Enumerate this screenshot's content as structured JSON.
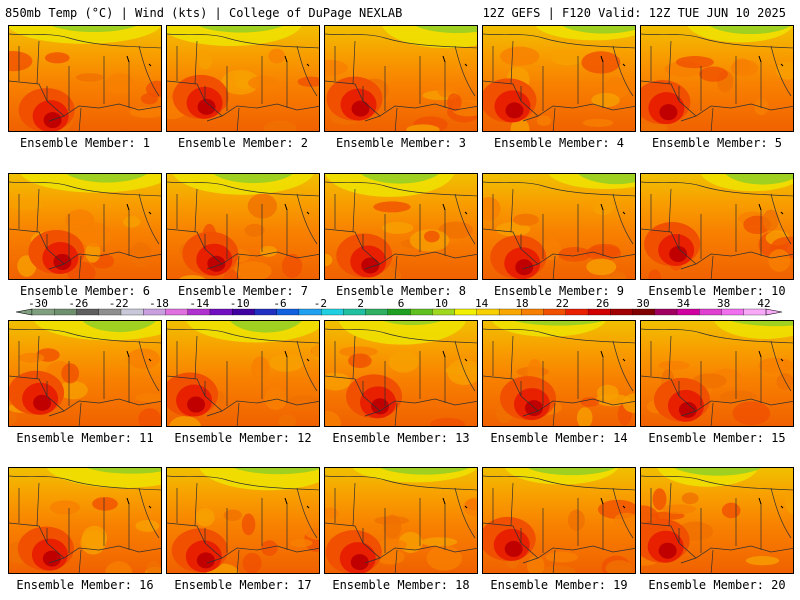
{
  "header": {
    "left": "850mb Temp (°C) | Wind (kts) | College of DuPage NEXLAB",
    "right": "12Z GEFS | F120 Valid: 12Z TUE JUN 10 2025"
  },
  "panels": [
    {
      "label": "Ensemble Member: 1"
    },
    {
      "label": "Ensemble Member: 2"
    },
    {
      "label": "Ensemble Member: 3"
    },
    {
      "label": "Ensemble Member: 4"
    },
    {
      "label": "Ensemble Member: 5"
    },
    {
      "label": "Ensemble Member: 6"
    },
    {
      "label": "Ensemble Member: 7"
    },
    {
      "label": "Ensemble Member: 8"
    },
    {
      "label": "Ensemble Member: 9"
    },
    {
      "label": "Ensemble Member: 10"
    },
    {
      "label": "Ensemble Member: 11"
    },
    {
      "label": "Ensemble Member: 12"
    },
    {
      "label": "Ensemble Member: 13"
    },
    {
      "label": "Ensemble Member: 14"
    },
    {
      "label": "Ensemble Member: 15"
    },
    {
      "label": "Ensemble Member: 16"
    },
    {
      "label": "Ensemble Member: 17"
    },
    {
      "label": "Ensemble Member: 18"
    },
    {
      "label": "Ensemble Member: 19"
    },
    {
      "label": "Ensemble Member: 20"
    }
  ],
  "colorbar": {
    "ticks": [
      "-30",
      "-26",
      "-22",
      "-18",
      "-14",
      "-10",
      "-6",
      "-2",
      "2",
      "6",
      "10",
      "14",
      "18",
      "22",
      "26",
      "30",
      "34",
      "38",
      "42"
    ],
    "colors": [
      "#7f9f7f",
      "#6f8f6f",
      "#5f5f5f",
      "#8f8f8f",
      "#c8c8d8",
      "#c8a0e0",
      "#e070e0",
      "#b030d0",
      "#7010c0",
      "#4000a0",
      "#2030c0",
      "#1060e0",
      "#20a0f0",
      "#20d0e0",
      "#20c0a0",
      "#30b060",
      "#20a020",
      "#60c020",
      "#a0d820",
      "#f0f000",
      "#f8d000",
      "#f8a800",
      "#f88000",
      "#f05000",
      "#e82000",
      "#d00000",
      "#a00000",
      "#800000",
      "#a00060",
      "#d000a0",
      "#e040d0",
      "#f070f0",
      "#f8a8f8"
    ]
  }
}
